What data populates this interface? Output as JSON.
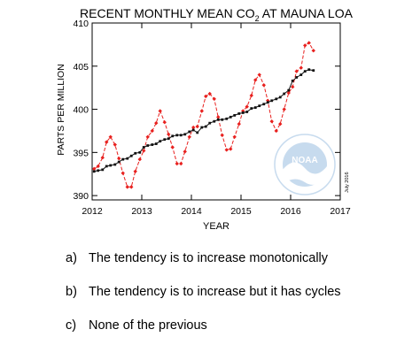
{
  "chart_data": {
    "type": "line",
    "title_main": "RECENT MONTHLY MEAN CO",
    "title_sub": "2",
    "title_tail": " AT MAUNA LOA",
    "xlabel": "YEAR",
    "ylabel": "PARTS PER MILLION",
    "xlim": [
      2012,
      2017
    ],
    "ylim": [
      389.5,
      410
    ],
    "xticks": [
      2012,
      2013,
      2014,
      2015,
      2016,
      2017
    ],
    "yticks": [
      390,
      395,
      400,
      405,
      410
    ],
    "grid": false,
    "watermark_logo": "NOAA",
    "date_note": "July 2016",
    "series": [
      {
        "style": "monthly-mean",
        "color": "#e8201e",
        "marker": "diamond",
        "line": "dashed",
        "x": [
          2012.04,
          2012.12,
          2012.21,
          2012.29,
          2012.37,
          2012.46,
          2012.54,
          2012.62,
          2012.71,
          2012.79,
          2012.87,
          2012.96,
          2013.04,
          2013.12,
          2013.21,
          2013.29,
          2013.37,
          2013.46,
          2013.54,
          2013.62,
          2013.71,
          2013.79,
          2013.87,
          2013.96,
          2014.04,
          2014.12,
          2014.21,
          2014.29,
          2014.37,
          2014.46,
          2014.54,
          2014.62,
          2014.71,
          2014.79,
          2014.87,
          2014.96,
          2015.04,
          2015.12,
          2015.21,
          2015.29,
          2015.37,
          2015.46,
          2015.54,
          2015.62,
          2015.71,
          2015.79,
          2015.87,
          2015.96,
          2016.04,
          2016.12,
          2016.21,
          2016.29,
          2016.37,
          2016.46
        ],
        "y": [
          393.1,
          393.4,
          394.4,
          396.2,
          396.8,
          395.9,
          394.3,
          392.6,
          391.0,
          391.0,
          392.8,
          394.2,
          395.2,
          396.8,
          397.5,
          398.4,
          399.8,
          398.5,
          397.1,
          395.6,
          393.7,
          393.7,
          395.1,
          396.8,
          397.9,
          398.0,
          399.8,
          401.5,
          401.8,
          401.2,
          399.1,
          397.0,
          395.3,
          395.4,
          396.8,
          398.3,
          399.8,
          400.3,
          401.6,
          403.4,
          404.0,
          402.8,
          401.0,
          398.6,
          397.5,
          398.3,
          400.0,
          401.9,
          402.6,
          404.4,
          404.8,
          407.4,
          407.7,
          406.8
        ]
      },
      {
        "style": "seasonally-corrected",
        "color": "#111111",
        "marker": "square",
        "line": "solid",
        "x": [
          2012.04,
          2012.12,
          2012.21,
          2012.29,
          2012.37,
          2012.46,
          2012.54,
          2012.62,
          2012.71,
          2012.79,
          2012.87,
          2012.96,
          2013.04,
          2013.12,
          2013.21,
          2013.29,
          2013.37,
          2013.46,
          2013.54,
          2013.62,
          2013.71,
          2013.79,
          2013.87,
          2013.96,
          2014.04,
          2014.12,
          2014.21,
          2014.29,
          2014.37,
          2014.46,
          2014.54,
          2014.62,
          2014.71,
          2014.79,
          2014.87,
          2014.96,
          2015.04,
          2015.12,
          2015.21,
          2015.29,
          2015.37,
          2015.46,
          2015.54,
          2015.62,
          2015.71,
          2015.79,
          2015.87,
          2015.96,
          2016.04,
          2016.12,
          2016.21,
          2016.29,
          2016.37,
          2016.46
        ],
        "y": [
          392.8,
          392.9,
          393.0,
          393.4,
          393.5,
          393.6,
          393.9,
          394.2,
          394.3,
          394.6,
          394.9,
          395.0,
          395.6,
          395.8,
          395.9,
          396.0,
          396.3,
          396.5,
          396.6,
          396.9,
          397.0,
          397.0,
          397.1,
          397.4,
          397.6,
          397.3,
          397.9,
          398.0,
          398.4,
          398.6,
          398.8,
          398.8,
          398.9,
          399.1,
          399.3,
          399.5,
          399.6,
          399.7,
          400.1,
          400.2,
          400.4,
          400.6,
          400.8,
          401.0,
          401.2,
          401.4,
          401.8,
          402.2,
          403.3,
          403.7,
          404.0,
          404.4,
          404.6,
          404.5
        ]
      }
    ]
  },
  "options": [
    {
      "letter": "a)",
      "text": "The tendency is to increase monotonically"
    },
    {
      "letter": "b)",
      "text": "The tendency is to increase but it has cycles"
    },
    {
      "letter": "c)",
      "text": "None of the previous"
    }
  ]
}
